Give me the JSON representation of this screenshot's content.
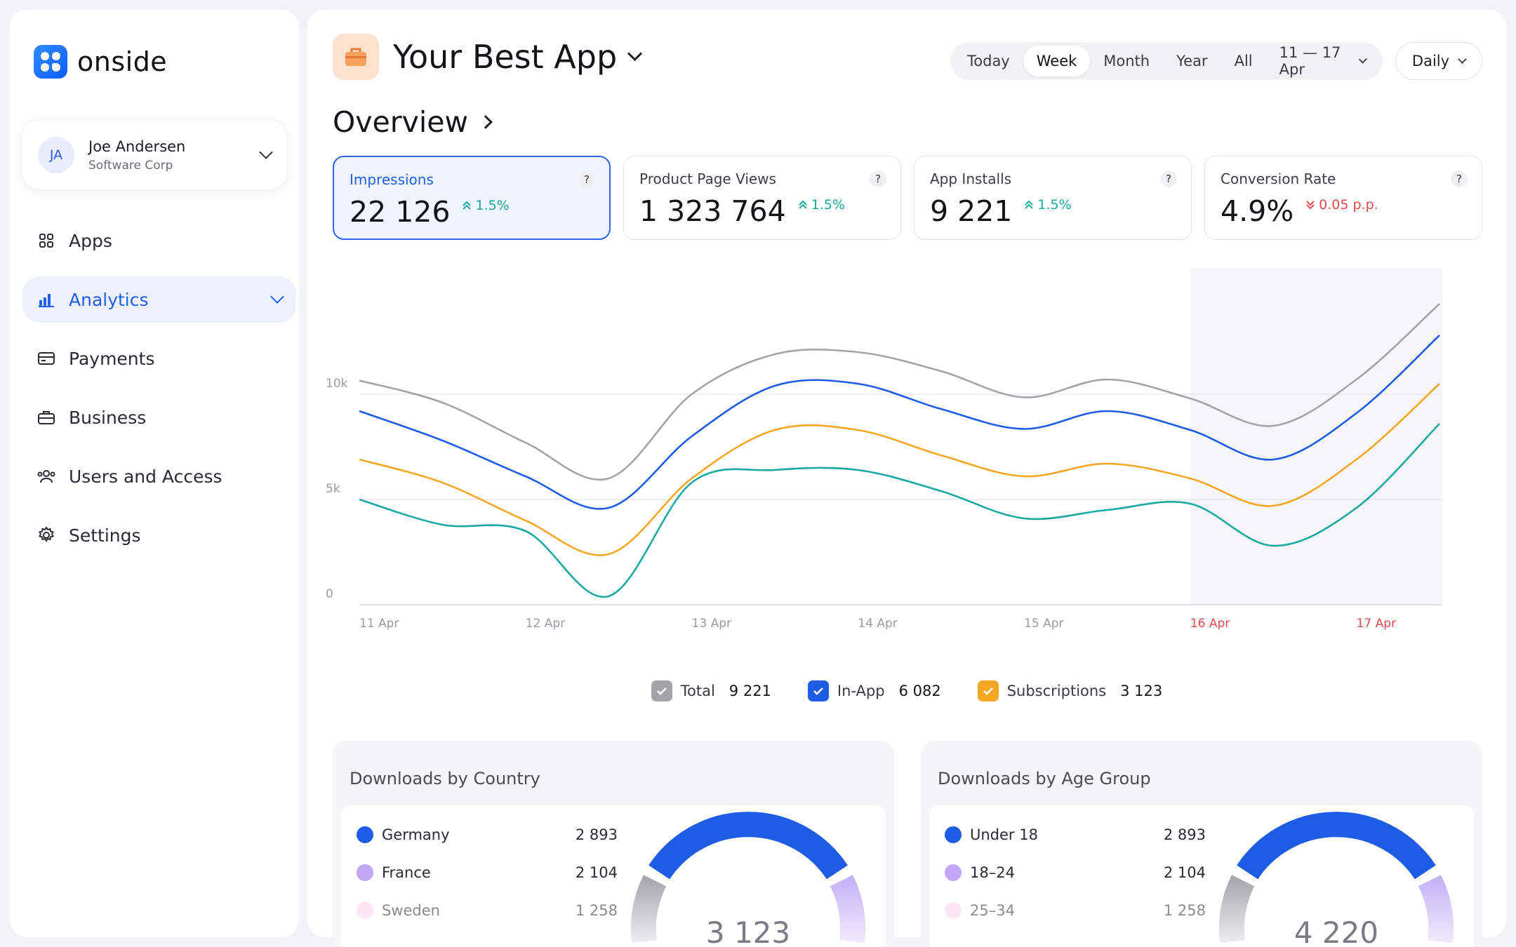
{
  "brand": {
    "name": "onside"
  },
  "user": {
    "initials": "JA",
    "name": "Joe Andersen",
    "company": "Software Corp"
  },
  "nav": [
    {
      "label": "Apps",
      "icon": "apps-grid-icon"
    },
    {
      "label": "Analytics",
      "icon": "bar-chart-icon",
      "active": true
    },
    {
      "label": "Payments",
      "icon": "credit-card-icon"
    },
    {
      "label": "Business",
      "icon": "briefcase-icon"
    },
    {
      "label": "Users and Access",
      "icon": "users-icon"
    },
    {
      "label": "Settings",
      "icon": "gear-icon"
    }
  ],
  "app": {
    "title": "Your Best App",
    "icon": "briefcase-icon"
  },
  "periods": [
    "Today",
    "Week",
    "Month",
    "Year",
    "All"
  ],
  "active_period": "Week",
  "date_range": "11 — 17 Apr",
  "granularity": "Daily",
  "overview_title": "Overview",
  "kpis": [
    {
      "label": "Impressions",
      "value": "22 126",
      "delta": "1.5%",
      "direction": "up",
      "help": "?"
    },
    {
      "label": "Product Page Views",
      "value": "1 323 764",
      "delta": "1.5%",
      "direction": "up",
      "help": "?"
    },
    {
      "label": "App Installs",
      "value": "9 221",
      "delta": "1.5%",
      "direction": "up",
      "help": "?"
    },
    {
      "label": "Conversion Rate",
      "value": "4.9%",
      "delta": "0.05 p.p.",
      "direction": "down",
      "help": "?"
    }
  ],
  "colors": {
    "accent": "#1f5fe6",
    "total": "#a3a3a8",
    "in_app": "#1e5ce6",
    "subscriptions": "#f5a623",
    "teal": "#19a9a0",
    "up": "#1aa79a",
    "down": "#e5484d",
    "highlight_date": "#e5484d"
  },
  "chart_data": {
    "type": "line",
    "x": [
      "11 Apr",
      "11.5",
      "12 Apr",
      "12.5",
      "13 Apr",
      "13.5",
      "14 Apr",
      "14.5",
      "15 Apr",
      "15.5",
      "16 Apr",
      "16.5",
      "17 Apr",
      "17.5"
    ],
    "xticks": [
      "11 Apr",
      "12 Apr",
      "13 Apr",
      "14 Apr",
      "15 Apr",
      "16 Apr",
      "17 Apr"
    ],
    "highlighted_ticks": [
      "16 Apr",
      "17 Apr"
    ],
    "yticks": [
      "0",
      "5k",
      "10k"
    ],
    "ylim": [
      0,
      15000
    ],
    "shaded_from": "16 Apr",
    "series": [
      {
        "name": "Total",
        "color": "#a3a3a8",
        "values": [
          10650,
          9600,
          7700,
          6000,
          10000,
          11900,
          12000,
          11100,
          9850,
          10700,
          9800,
          8500,
          10700,
          14300
        ]
      },
      {
        "name": "In-App",
        "color": "#1e5ce6",
        "values": [
          9200,
          7800,
          6100,
          4600,
          8000,
          10400,
          10500,
          9300,
          8350,
          9200,
          8300,
          6900,
          9100,
          12800
        ]
      },
      {
        "name": "Subscriptions",
        "color": "#f5a623",
        "values": [
          6900,
          5800,
          4000,
          2400,
          6000,
          8300,
          8300,
          7100,
          6100,
          6700,
          6000,
          4700,
          6900,
          10500
        ]
      },
      {
        "name": "",
        "color": "#19a9a0",
        "values": [
          5000,
          3800,
          3500,
          400,
          5800,
          6400,
          6400,
          5400,
          4100,
          4500,
          4800,
          2800,
          4600,
          8600
        ]
      }
    ]
  },
  "legend": [
    {
      "label": "Total",
      "value": "9 221",
      "color": "#a3a3a8"
    },
    {
      "label": "In-App",
      "value": "6 082",
      "color": "#1e5ce6"
    },
    {
      "label": "Subscriptions",
      "value": "3 123",
      "color": "#f5a623"
    }
  ],
  "country_panel": {
    "title": "Downloads by Country",
    "rows": [
      {
        "label": "Germany",
        "value": "2 893",
        "color": "#1e5ce6"
      },
      {
        "label": "France",
        "value": "2 104",
        "color": "#bfa6f6"
      },
      {
        "label": "Sweden",
        "value": "1 258",
        "color": "#fbd3ef"
      }
    ],
    "total": "3 123"
  },
  "age_panel": {
    "title": "Downloads by Age Group",
    "rows": [
      {
        "label": "Under 18",
        "value": "2 893",
        "color": "#1e5ce6"
      },
      {
        "label": "18–24",
        "value": "2 104",
        "color": "#bfa6f6"
      },
      {
        "label": "25–34",
        "value": "1 258",
        "color": "#fbd3ef"
      }
    ],
    "total": "4 220"
  }
}
